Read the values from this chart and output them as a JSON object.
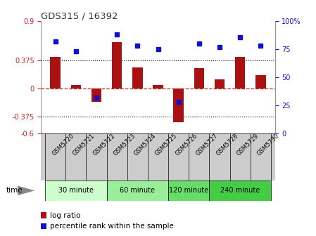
{
  "title": "GDS315 / 16392",
  "samples": [
    "GSM5720",
    "GSM5721",
    "GSM5722",
    "GSM5723",
    "GSM5724",
    "GSM5725",
    "GSM5726",
    "GSM5727",
    "GSM5728",
    "GSM5729",
    "GSM5730"
  ],
  "log_ratio": [
    0.42,
    0.05,
    -0.18,
    0.62,
    0.28,
    0.05,
    -0.45,
    0.27,
    0.12,
    0.42,
    0.18
  ],
  "percentile": [
    82,
    73,
    32,
    88,
    78,
    75,
    28,
    80,
    77,
    86,
    78
  ],
  "ylim_left": [
    -0.6,
    0.9
  ],
  "ylim_right": [
    0,
    100
  ],
  "yticks_left": [
    -0.6,
    -0.375,
    0,
    0.375,
    0.9
  ],
  "yticks_right": [
    0,
    25,
    50,
    75,
    100
  ],
  "hlines": [
    0.375,
    -0.375
  ],
  "bar_color": "#aa1111",
  "dot_color": "#1111cc",
  "zero_line_color": "#cc2222",
  "groups": [
    {
      "label": "30 minute",
      "start": 0,
      "end": 2,
      "color": "#ccffcc"
    },
    {
      "label": "60 minute",
      "start": 3,
      "end": 5,
      "color": "#99ee99"
    },
    {
      "label": "120 minute",
      "start": 6,
      "end": 7,
      "color": "#66dd66"
    },
    {
      "label": "240 minute",
      "start": 8,
      "end": 10,
      "color": "#44cc44"
    }
  ],
  "time_label": "time",
  "legend_bar_label": "log ratio",
  "legend_dot_label": "percentile rank within the sample",
  "background_color": "#ffffff",
  "plot_bg": "#ffffff",
  "tick_label_color_left": "#cc2222",
  "tick_label_color_right": "#1111cc",
  "title_color": "#333333",
  "sample_bg": "#cccccc",
  "sample_border": "#888888"
}
